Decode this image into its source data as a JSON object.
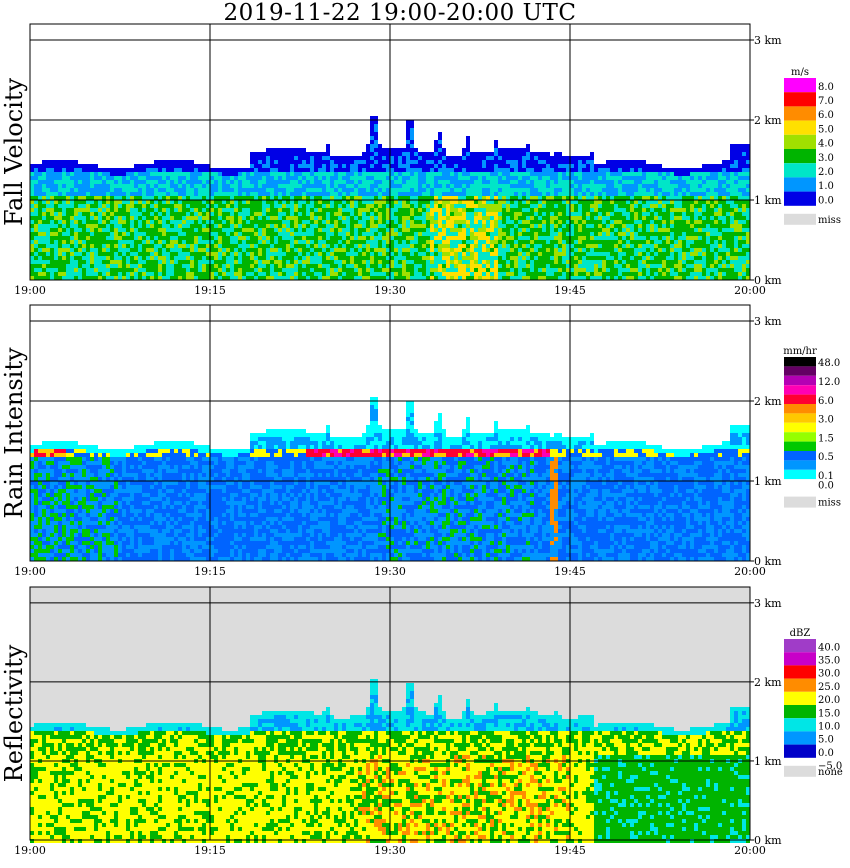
{
  "title": "2019-11-22   19:00-20:00 UTC",
  "colors": {
    "missing": "#dcdcdc",
    "gridline": "#000000"
  },
  "chart_data": [
    {
      "type": "heatmap",
      "id": "fall",
      "ylabel": "Fall Velocity",
      "xlabel": "",
      "x_ticks": [
        "19:00",
        "19:15",
        "19:30",
        "19:45",
        "20:00"
      ],
      "y_ticks": [
        "0 km",
        "1 km",
        "2 km",
        "3 km"
      ],
      "ylim_km": [
        0,
        3.2
      ],
      "grid": true,
      "colorbar": {
        "unit": "m/s",
        "labels": [
          "8.0",
          "7.0",
          "6.0",
          "5.0",
          "4.0",
          "3.0",
          "2.0",
          "1.0",
          "0.0"
        ],
        "colors": [
          "#ff00ff",
          "#ff0000",
          "#ff8c00",
          "#ffe000",
          "#a0e000",
          "#00b400",
          "#00e6c8",
          "#0096ff",
          "#0000e6"
        ],
        "missing_label": "miss"
      }
    },
    {
      "type": "heatmap",
      "id": "rain",
      "ylabel": "Rain Intensity",
      "xlabel": "",
      "x_ticks": [
        "19:00",
        "19:15",
        "19:30",
        "19:45",
        "20:00"
      ],
      "y_ticks": [
        "0 km",
        "1 km",
        "2 km",
        "3 km"
      ],
      "ylim_km": [
        0,
        3.2
      ],
      "grid": true,
      "colorbar": {
        "unit": "mm/hr",
        "labels": [
          "48.0",
          "",
          "12.0",
          "",
          "6.0",
          "",
          "3.0",
          "",
          "1.5",
          "",
          "0.5",
          "",
          "0.1",
          "0.0"
        ],
        "colors": [
          "#000000",
          "#640064",
          "#b400b4",
          "#ff00b4",
          "#ff0032",
          "#ff8c00",
          "#ffc800",
          "#ffff00",
          "#96ff00",
          "#00c800",
          "#0064ff",
          "#0096ff",
          "#00ffff",
          "#ffffff"
        ],
        "missing_label": "miss"
      }
    },
    {
      "type": "heatmap",
      "id": "refl",
      "ylabel": "Reflectivity",
      "xlabel": "",
      "x_ticks": [
        "19:00",
        "19:15",
        "19:30",
        "19:45",
        "20:00"
      ],
      "y_ticks": [
        "0 km",
        "1 km",
        "2 km",
        "3 km"
      ],
      "ylim_km": [
        0,
        3.2
      ],
      "grid": true,
      "colorbar": {
        "unit": "dBZ",
        "labels": [
          "40.0",
          "35.0",
          "30.0",
          "25.0",
          "20.0",
          "15.0",
          "10.0",
          "5.0",
          "0.0",
          "−5.0"
        ],
        "colors": [
          "#a03cc8",
          "#c800c8",
          "#ff0000",
          "#ff8c00",
          "#ffff00",
          "#00b400",
          "#00e6e6",
          "#0096ff",
          "#0000c8"
        ],
        "missing_label": "none"
      }
    }
  ]
}
